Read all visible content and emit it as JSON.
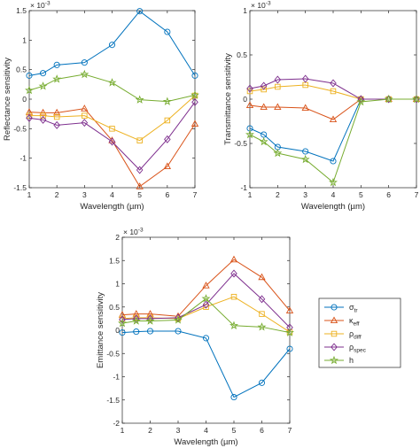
{
  "colors": {
    "sigma_tr": "#0072BD",
    "kappa_eff": "#D95319",
    "rho_diff": "#EDB120",
    "rho_spec": "#7E2F8E",
    "h": "#77AC30"
  },
  "legend": {
    "placement": "east-of-bottom-chart",
    "entries": [
      {
        "key": "sigma_tr",
        "base": "σ",
        "sub": "tr",
        "marker": "circle"
      },
      {
        "key": "kappa_eff",
        "base": "κ",
        "sub": "eff",
        "marker": "triangle"
      },
      {
        "key": "rho_diff",
        "base": "ρ",
        "sub": "diff",
        "marker": "square"
      },
      {
        "key": "rho_spec",
        "base": "ρ",
        "sub": "spec",
        "marker": "diamond"
      },
      {
        "key": "h",
        "base": "h",
        "sub": "",
        "marker": "star"
      }
    ]
  },
  "chart_data": [
    {
      "type": "line",
      "title": "",
      "xlabel": "Wavelength (µm)",
      "ylabel": "Reflectance sensitivity",
      "exponent_label": "× 10",
      "exponent_power": "-3",
      "xlim": [
        1,
        7
      ],
      "ylim": [
        -1.5,
        1.5
      ],
      "xticks": [
        1,
        2,
        3,
        4,
        5,
        6,
        7
      ],
      "yticks": [
        -1.5,
        -1,
        -0.5,
        0,
        0.5,
        1,
        1.5
      ],
      "ytick_labels": [
        "-1.5",
        "-1",
        "-0.5",
        "0",
        "0.5",
        "1",
        "1.5"
      ],
      "grid": false,
      "x": [
        1,
        1.5,
        2,
        3,
        4,
        5,
        6,
        7
      ],
      "series": [
        {
          "key": "sigma_tr",
          "values": [
            0.4,
            0.44,
            0.58,
            0.62,
            0.92,
            1.49,
            1.14,
            0.4
          ]
        },
        {
          "key": "kappa_eff",
          "values": [
            -0.22,
            -0.23,
            -0.23,
            -0.16,
            -0.7,
            -1.48,
            -1.14,
            -0.42
          ]
        },
        {
          "key": "rho_diff",
          "values": [
            -0.28,
            -0.28,
            -0.3,
            -0.28,
            -0.5,
            -0.7,
            -0.36,
            0.06
          ]
        },
        {
          "key": "rho_spec",
          "values": [
            -0.32,
            -0.35,
            -0.44,
            -0.4,
            -0.72,
            -1.2,
            -0.68,
            -0.05
          ]
        },
        {
          "key": "h",
          "values": [
            0.15,
            0.22,
            0.34,
            0.42,
            0.28,
            -0.01,
            -0.04,
            0.07
          ]
        }
      ]
    },
    {
      "type": "line",
      "title": "",
      "xlabel": "Wavelength (µm)",
      "ylabel": "Transmittance sensitivity",
      "exponent_label": "× 10",
      "exponent_power": "-3",
      "xlim": [
        1,
        7
      ],
      "ylim": [
        -1,
        1
      ],
      "xticks": [
        1,
        2,
        3,
        4,
        5,
        6,
        7
      ],
      "yticks": [
        -1,
        -0.5,
        0,
        0.5,
        1
      ],
      "ytick_labels": [
        "-1",
        "-0.5",
        "0",
        "0.5",
        "1"
      ],
      "grid": false,
      "x": [
        1,
        1.5,
        2,
        3,
        4,
        5,
        6,
        7
      ],
      "series": [
        {
          "key": "sigma_tr",
          "values": [
            -0.33,
            -0.4,
            -0.54,
            -0.59,
            -0.7,
            0,
            0,
            0
          ]
        },
        {
          "key": "kappa_eff",
          "values": [
            -0.07,
            -0.09,
            -0.09,
            -0.1,
            -0.23,
            0,
            0,
            0
          ]
        },
        {
          "key": "rho_diff",
          "values": [
            0.09,
            0.11,
            0.14,
            0.16,
            0.09,
            0,
            0,
            0
          ]
        },
        {
          "key": "rho_spec",
          "values": [
            0.12,
            0.15,
            0.22,
            0.23,
            0.18,
            0,
            0,
            0
          ]
        },
        {
          "key": "h",
          "values": [
            -0.4,
            -0.48,
            -0.61,
            -0.68,
            -0.94,
            -0.03,
            0,
            0
          ]
        }
      ]
    },
    {
      "type": "line",
      "title": "",
      "xlabel": "Wavelength (µm)",
      "ylabel": "Emittance sensitivity",
      "exponent_label": "× 10",
      "exponent_power": "-3",
      "xlim": [
        1,
        7
      ],
      "ylim": [
        -2,
        2
      ],
      "xticks": [
        1,
        2,
        3,
        4,
        5,
        6,
        7
      ],
      "yticks": [
        -2,
        -1.5,
        -1,
        -0.5,
        0,
        0.5,
        1,
        1.5,
        2
      ],
      "ytick_labels": [
        "-2",
        "-1.5",
        "-1",
        "-0.5",
        "0",
        "0.5",
        "1",
        "1.5",
        "2"
      ],
      "grid": false,
      "x": [
        1,
        1.5,
        2,
        3,
        4,
        5,
        6,
        7
      ],
      "series": [
        {
          "key": "sigma_tr",
          "values": [
            -0.05,
            -0.03,
            -0.02,
            -0.02,
            -0.17,
            -1.44,
            -1.13,
            -0.4
          ]
        },
        {
          "key": "kappa_eff",
          "values": [
            0.33,
            0.35,
            0.35,
            0.3,
            0.96,
            1.52,
            1.14,
            0.42
          ]
        },
        {
          "key": "rho_diff",
          "values": [
            0.25,
            0.27,
            0.27,
            0.25,
            0.5,
            0.72,
            0.35,
            -0.04
          ]
        },
        {
          "key": "rho_spec",
          "values": [
            0.23,
            0.25,
            0.25,
            0.27,
            0.55,
            1.22,
            0.67,
            0.06
          ]
        },
        {
          "key": "h",
          "values": [
            0.15,
            0.2,
            0.2,
            0.22,
            0.68,
            0.1,
            0.07,
            -0.05
          ]
        }
      ]
    }
  ]
}
